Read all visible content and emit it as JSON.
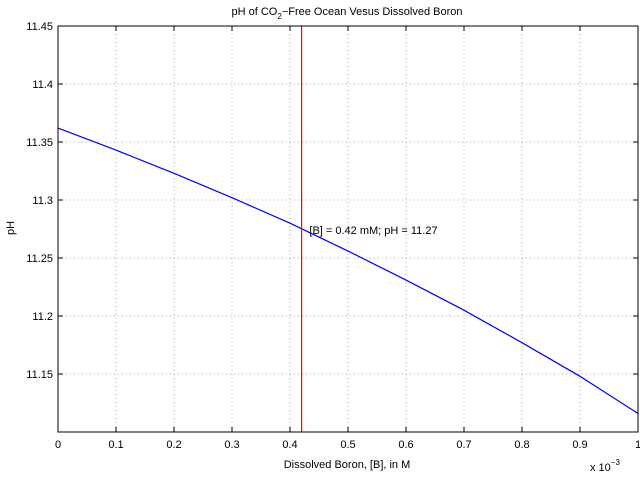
{
  "chart_data": {
    "type": "line",
    "title_parts": {
      "before": "pH of CO",
      "sub": "2",
      "after": "−Free Ocean Vesus Dissolved Boron"
    },
    "xlabel": "Dissolved Boron, [B], in M",
    "ylabel": "pH",
    "x_multiplier_label": "x 10",
    "x_multiplier_exponent": "−3",
    "xlim": [
      0,
      0.001
    ],
    "ylim": [
      11.1,
      11.45
    ],
    "x_ticks": [
      0,
      0.0001,
      0.0002,
      0.0003,
      0.0004,
      0.0005,
      0.0006,
      0.0007,
      0.0008,
      0.0009,
      0.001
    ],
    "x_tick_labels": [
      "0",
      "0.1",
      "0.2",
      "0.3",
      "0.4",
      "0.5",
      "0.6",
      "0.7",
      "0.8",
      "0.9",
      "1"
    ],
    "y_ticks": [
      11.15,
      11.2,
      11.25,
      11.3,
      11.35,
      11.4,
      11.45
    ],
    "y_tick_labels": [
      "11.15",
      "11.2",
      "11.25",
      "11.3",
      "11.35",
      "11.4",
      "11.45"
    ],
    "grid": true,
    "series": [
      {
        "color": "#0000ff",
        "x": [
          0,
          0.0001,
          0.0002,
          0.0003,
          0.0004,
          0.0005,
          0.0006,
          0.0007,
          0.0008,
          0.0009,
          0.001
        ],
        "y": [
          11.362,
          11.343,
          11.323,
          11.302,
          11.28,
          11.256,
          11.231,
          11.205,
          11.177,
          11.148,
          11.116
        ]
      }
    ],
    "vline": {
      "x": 0.00042,
      "color": "#ff0000"
    },
    "annotation": {
      "text": "[B] = 0.42 mM;  pH = 11.27",
      "x": 0.00043,
      "y": 11.27
    }
  }
}
